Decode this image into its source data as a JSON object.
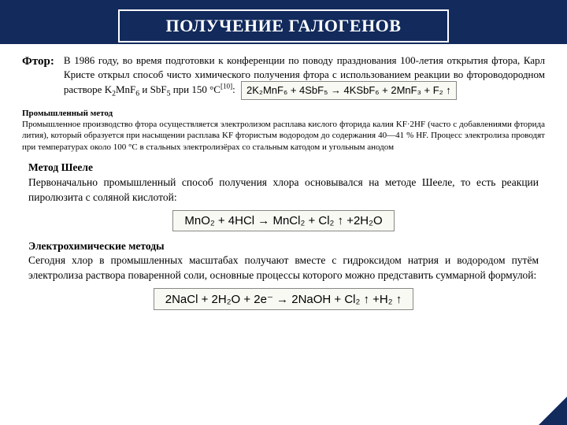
{
  "colors": {
    "title_bg": "#122a5c",
    "white": "#ffffff",
    "eq_bg": "#f9f9f3",
    "eq_border": "#888888",
    "corner": "#122a5c",
    "text": "#000000"
  },
  "title": "ПОЛУЧЕНИЕ ГАЛОГЕНОВ",
  "fluor_label": "Фтор:",
  "intro_part1": "В 1986 году, во время подготовки к конференции по поводу празднования 100-летия открытия фтора, Карл Кристе открыл способ чисто химического получения фтора с использованием реакции во фтороводородном растворе K",
  "intro_k2mnf6": "MnF",
  "intro_and": " и SbF",
  "intro_tail": " при 150 °C",
  "intro_ref": "[10]",
  "intro_colon": ":",
  "eq1": "2K₂MnF₆ + 4SbF₅ → 4KSbF₆ + 2MnF₃ + F₂ ↑",
  "industrial_h": "Промышленный метод",
  "industrial_body": "Промышленное производство фтора осуществляется электролизом расплава кислого фторида калия KF·2HF (часто с добавлениями фторида лития), который образуется при насыщении расплава KF фтористым водородом до содержания 40—41 % HF. Процесс электролиза проводят при температурах около 100 °C в стальных электролизёрах со стальным катодом и угольным анодом",
  "scheele_h": "Метод Шееле",
  "scheele_body": "Первоначально промышленный способ получения хлора основывался на методе Шееле, то есть реакции пиролюзита с соляной кислотой:",
  "eq2": "MnO₂ + 4HCl → MnCl₂ + Cl₂ ↑ +2H₂O",
  "electro_h": "Электрохимические методы",
  "electro_body": "Сегодня хлор в промышленных масштабах получают вместе с гидроксидом натрия и водородом путём электролиза раствора поваренной соли, основные процессы которого можно представить суммарной формулой:",
  "eq3": "2NaCl + 2H₂O + 2e⁻ → 2NaOH + Cl₂ ↑ +H₂ ↑"
}
